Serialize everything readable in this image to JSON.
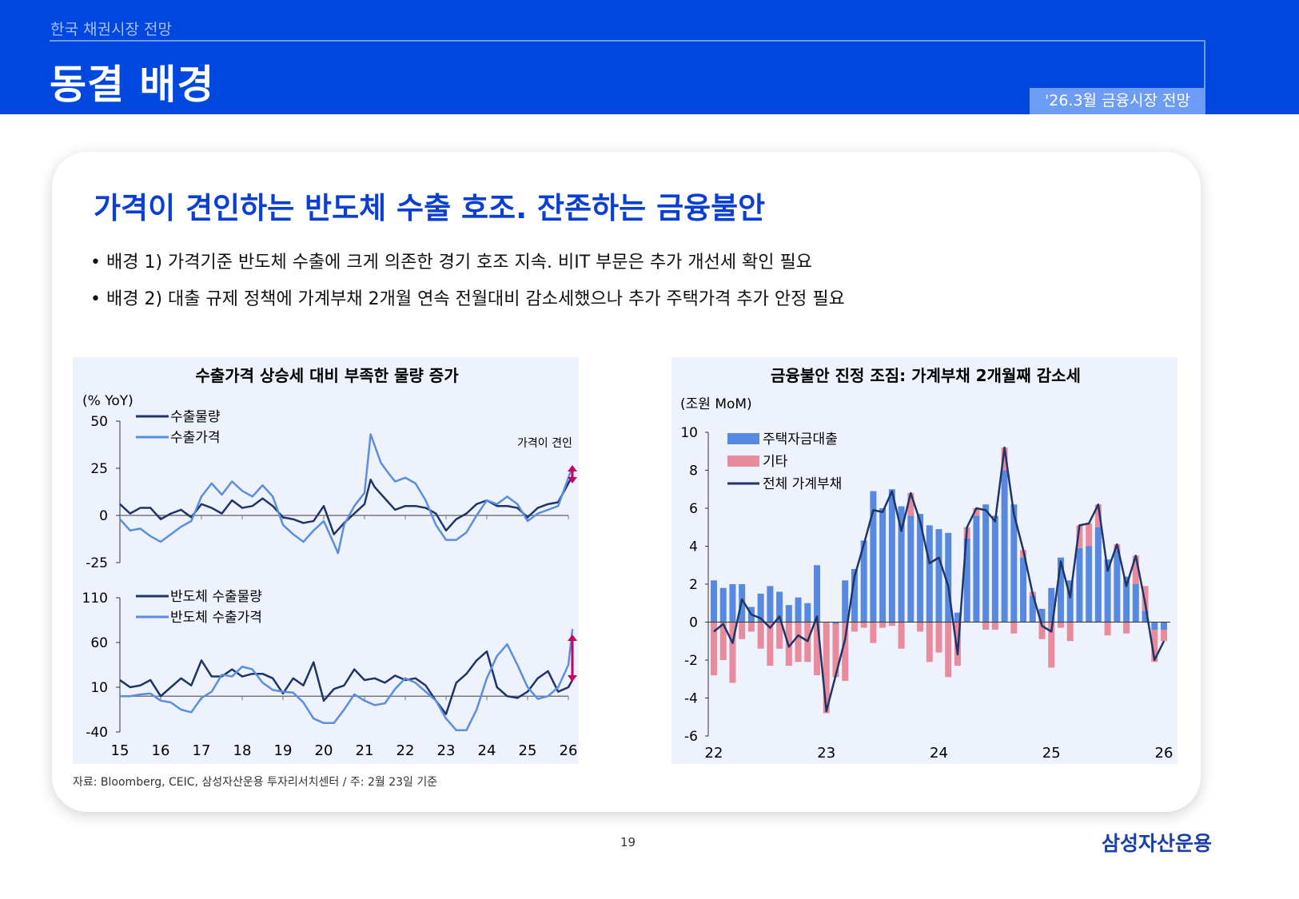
{
  "header": {
    "section": "한국 채권시장 전망",
    "title": "동결 배경",
    "badge": "'26.3월 금융시장 전망"
  },
  "main": {
    "headline": "가격이 견인하는 반도체 수출 호조. 잔존하는 금융불안",
    "bullets": [
      "• 배경 1) 가격기준 반도체 수출에 크게 의존한 경기 호조 지속. 비IT 부문은 추가 개선세 확인 필요",
      "• 배경 2) 대출 규제 정책에 가계부채 2개월 연속 전월대비 감소세했으나 추가 주택가격 추가 안정 필요"
    ],
    "source": "자료: Bloomberg, CEIC, 삼성자산운용 투자리서치센터 / 주: 2월 23일 기준"
  },
  "footer": {
    "page": "19",
    "logo": "삼성자산운용"
  },
  "colors": {
    "dark_line": "#1f3468",
    "light_line": "#5a8ee0",
    "housing": "#5889e0",
    "other": "#e88b9c",
    "arrow": "#c8005f",
    "panel_bg": "#eef2fd",
    "brand": "#0047e0"
  },
  "chart_data": [
    {
      "type": "line",
      "title": "수출가격 상승세 대비 부족한 물량 증가",
      "ylabel": "(% YoY)",
      "annotation": "가격이 견인",
      "xticks": [
        "15",
        "16",
        "17",
        "18",
        "19",
        "20",
        "21",
        "22",
        "23",
        "24",
        "25",
        "26"
      ],
      "panels": [
        {
          "ylim": [
            -25,
            50
          ],
          "yticks": [
            "50",
            "25",
            "0",
            "-25"
          ],
          "ytick_values": [
            50,
            25,
            0,
            -25
          ],
          "series": [
            {
              "name": "수출물량",
              "color": "#1f3468",
              "x": [
                2015,
                2015.25,
                2015.5,
                2015.75,
                2016,
                2016.25,
                2016.5,
                2016.75,
                2017,
                2017.25,
                2017.5,
                2017.75,
                2018,
                2018.25,
                2018.5,
                2018.75,
                2019,
                2019.25,
                2019.5,
                2019.75,
                2020,
                2020.25,
                2020.5,
                2020.75,
                2021,
                2021.15,
                2021.25,
                2021.5,
                2021.75,
                2022,
                2022.25,
                2022.5,
                2022.75,
                2023,
                2023.25,
                2023.5,
                2023.75,
                2024,
                2024.25,
                2024.5,
                2024.75,
                2025,
                2025.25,
                2025.5,
                2025.75,
                2026,
                2026.1
              ],
              "y": [
                6,
                1,
                4,
                4,
                -2,
                1,
                3,
                -1,
                6,
                4,
                1,
                8,
                4,
                5,
                9,
                5,
                -1,
                -2,
                -4,
                -3,
                5,
                -10,
                -4,
                1,
                6,
                19,
                15,
                9,
                3,
                5,
                5,
                4,
                1,
                -8,
                -2,
                1,
                6,
                8,
                5,
                5,
                4,
                -1,
                4,
                6,
                7,
                17,
                21
              ]
            },
            {
              "name": "수출가격",
              "color": "#5a8ee0",
              "x": [
                2015,
                2015.25,
                2015.5,
                2015.75,
                2016,
                2016.25,
                2016.5,
                2016.75,
                2017,
                2017.25,
                2017.5,
                2017.75,
                2018,
                2018.25,
                2018.5,
                2018.75,
                2019,
                2019.25,
                2019.5,
                2019.75,
                2020,
                2020.25,
                2020.35,
                2020.5,
                2020.75,
                2021,
                2021.15,
                2021.4,
                2021.6,
                2021.75,
                2022,
                2022.25,
                2022.5,
                2022.75,
                2023,
                2023.25,
                2023.5,
                2023.75,
                2024,
                2024.25,
                2024.5,
                2024.75,
                2025,
                2025.25,
                2025.5,
                2025.75,
                2026,
                2026.1
              ],
              "y": [
                -2,
                -8,
                -7,
                -11,
                -14,
                -10,
                -6,
                -3,
                10,
                17,
                11,
                18,
                13,
                10,
                16,
                10,
                -5,
                -10,
                -14,
                -8,
                -3,
                -15,
                -20,
                -5,
                5,
                12,
                43,
                28,
                22,
                18,
                20,
                17,
                8,
                -5,
                -13,
                -13,
                -9,
                0,
                8,
                6,
                10,
                6,
                -3,
                1,
                3,
                5,
                20,
                26
              ]
            }
          ]
        },
        {
          "ylim": [
            -40,
            110
          ],
          "yticks": [
            "110",
            "60",
            "10",
            "-40"
          ],
          "ytick_values": [
            110,
            60,
            10,
            -40
          ],
          "series": [
            {
              "name": "반도체 수출물량",
              "color": "#1f3468",
              "x": [
                2015,
                2015.25,
                2015.5,
                2015.75,
                2016,
                2016.25,
                2016.5,
                2016.75,
                2017,
                2017.25,
                2017.5,
                2017.75,
                2018,
                2018.25,
                2018.5,
                2018.75,
                2019,
                2019.25,
                2019.5,
                2019.75,
                2020,
                2020.25,
                2020.5,
                2020.75,
                2021,
                2021.25,
                2021.5,
                2021.75,
                2022,
                2022.25,
                2022.5,
                2022.75,
                2023,
                2023.25,
                2023.5,
                2023.75,
                2024,
                2024.25,
                2024.5,
                2024.75,
                2025,
                2025.25,
                2025.5,
                2025.75,
                2026,
                2026.1
              ],
              "y": [
                18,
                10,
                12,
                18,
                0,
                10,
                20,
                12,
                40,
                22,
                22,
                30,
                22,
                25,
                25,
                20,
                3,
                20,
                12,
                38,
                -5,
                8,
                12,
                30,
                18,
                20,
                15,
                23,
                18,
                20,
                12,
                -5,
                -20,
                15,
                25,
                40,
                50,
                10,
                0,
                -2,
                5,
                20,
                28,
                5,
                10,
                18
              ]
            },
            {
              "name": "반도체 수출가격",
              "color": "#5a8ee0",
              "x": [
                2015,
                2015.25,
                2015.5,
                2015.75,
                2016,
                2016.25,
                2016.5,
                2016.75,
                2017,
                2017.25,
                2017.5,
                2017.75,
                2018,
                2018.25,
                2018.5,
                2018.75,
                2019,
                2019.25,
                2019.5,
                2019.75,
                2020,
                2020.25,
                2020.5,
                2020.75,
                2021,
                2021.25,
                2021.5,
                2021.75,
                2022,
                2022.25,
                2022.5,
                2022.75,
                2023,
                2023.25,
                2023.5,
                2023.75,
                2024,
                2024.25,
                2024.5,
                2024.75,
                2025,
                2025.25,
                2025.5,
                2025.75,
                2026,
                2026.1
              ],
              "y": [
                0,
                0,
                2,
                3,
                -5,
                -7,
                -15,
                -18,
                -2,
                5,
                24,
                22,
                33,
                30,
                15,
                7,
                5,
                4,
                -7,
                -25,
                -30,
                -30,
                -15,
                2,
                -5,
                -10,
                -8,
                8,
                20,
                15,
                5,
                -5,
                -25,
                -38,
                -38,
                -15,
                20,
                45,
                58,
                35,
                10,
                -3,
                0,
                10,
                35,
                75
              ]
            }
          ]
        }
      ]
    },
    {
      "type": "bar",
      "title": "금융불안 진정 조짐: 가계부채 2개월째 감소세",
      "ylabel": "(조원 MoM)",
      "ylim": [
        -6,
        10
      ],
      "yticks": [
        "10",
        "8",
        "6",
        "4",
        "2",
        "0",
        "-2",
        "-4",
        "-6"
      ],
      "ytick_values": [
        10,
        8,
        6,
        4,
        2,
        0,
        -2,
        -4,
        -6
      ],
      "xticks": [
        "22",
        "23",
        "24",
        "25",
        "26"
      ],
      "start": "2022-01",
      "series": [
        {
          "name": "주택자금대출",
          "color": "#5889e0",
          "values": [
            2.2,
            1.8,
            2.0,
            2.0,
            0.8,
            1.5,
            1.9,
            1.6,
            0.9,
            1.3,
            1.0,
            3.0,
            0.0,
            -0.1,
            2.2,
            2.8,
            4.3,
            6.9,
            6.0,
            7.0,
            6.1,
            5.6,
            5.7,
            5.1,
            4.9,
            4.7,
            0.5,
            4.4,
            5.6,
            6.2,
            5.6,
            8.0,
            6.2,
            3.4,
            1.4,
            0.7,
            1.8,
            3.4,
            2.2,
            3.9,
            4.0,
            5.0,
            3.3,
            3.8,
            2.4,
            2.0,
            0.6,
            -0.4,
            -0.4
          ]
        },
        {
          "name": "기타",
          "color": "#e88b9c",
          "values": [
            -2.8,
            -2.0,
            -3.2,
            -0.9,
            -0.5,
            -1.4,
            -2.3,
            -1.4,
            -2.3,
            -2.1,
            -2.1,
            -2.8,
            -4.8,
            -2.8,
            -3.1,
            -0.5,
            -0.3,
            -1.1,
            -0.3,
            -0.2,
            -1.4,
            1.2,
            -0.5,
            -2.1,
            -1.6,
            -2.9,
            -2.3,
            0.6,
            0.4,
            -0.4,
            -0.4,
            1.2,
            -0.6,
            0.4,
            0.2,
            -0.9,
            -2.4,
            -0.3,
            -1.0,
            1.2,
            1.2,
            1.2,
            -0.7,
            0.3,
            -0.6,
            1.5,
            1.3,
            -1.7,
            -0.6
          ]
        },
        {
          "name": "전체 가계부채",
          "color": "#1f3468",
          "type": "line",
          "values": [
            -0.5,
            -0.1,
            -1.1,
            1.2,
            0.4,
            0.2,
            -0.3,
            0.3,
            -1.3,
            -0.7,
            -1.0,
            0.3,
            -4.7,
            -2.8,
            -0.9,
            2.4,
            4.1,
            5.9,
            5.8,
            6.9,
            4.8,
            6.8,
            5.3,
            3.1,
            3.4,
            1.9,
            -1.7,
            5.0,
            6.0,
            5.9,
            5.3,
            9.2,
            5.7,
            3.8,
            1.5,
            -0.2,
            -0.5,
            3.2,
            1.3,
            5.1,
            5.2,
            6.2,
            2.7,
            4.1,
            1.9,
            3.5,
            1.0,
            -2.0,
            -1.0
          ]
        }
      ]
    }
  ]
}
